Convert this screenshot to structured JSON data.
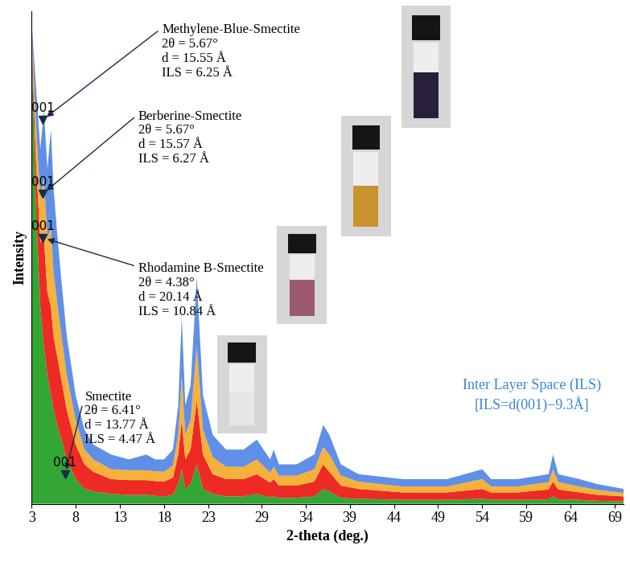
{
  "chart_data": {
    "type": "stacked_area",
    "x_label": "2-theta (deg.)",
    "y_label": "Intensity",
    "x": [
      3,
      3.5,
      4,
      4.4,
      4.8,
      5.2,
      5.5,
      5.9,
      6.4,
      7,
      8,
      9,
      10,
      12,
      14,
      16,
      17,
      18,
      19,
      19.6,
      20,
      20.4,
      21,
      21.7,
      22.4,
      23.5,
      25,
      27,
      28.5,
      30,
      30.4,
      31,
      33,
      35,
      36,
      36.7,
      38,
      40,
      45,
      50,
      54,
      55,
      58,
      61.5,
      62,
      62.6,
      65,
      67,
      70
    ],
    "series": [
      {
        "name": "Smectite",
        "color": "#33a633",
        "values": [
          95,
          60,
          40,
          32,
          26,
          22,
          19,
          16,
          13,
          9,
          5,
          3,
          2.5,
          2,
          1.8,
          1.8,
          1.6,
          1.5,
          1.8,
          4,
          7,
          3,
          4,
          8,
          3,
          2,
          1.5,
          1.5,
          2,
          1.3,
          1.5,
          1.2,
          1.2,
          1.5,
          3,
          2.5,
          1.2,
          1,
          0.8,
          0.8,
          1,
          0.8,
          0.8,
          0.9,
          1.5,
          0.9,
          0.8,
          0.6,
          0.5
        ]
      },
      {
        "name": "Rhodamine B-Smectite",
        "color": "#ee2a24",
        "values": [
          1,
          10,
          13,
          22,
          17,
          18,
          15,
          14,
          12,
          10,
          7,
          5,
          4,
          3,
          3,
          3,
          3,
          3,
          3.5,
          6,
          10,
          6,
          7,
          13,
          7,
          4,
          3.5,
          3.5,
          4,
          3,
          3.5,
          2.5,
          2.5,
          3,
          5,
          4,
          2.5,
          2,
          1.5,
          1.5,
          2,
          1.5,
          1.5,
          2,
          3,
          2,
          1.5,
          1.2,
          1
        ]
      },
      {
        "name": "Berberine-Smectite",
        "color": "#f5b13a",
        "values": [
          1,
          7,
          9,
          12,
          11,
          16,
          13,
          11,
          9,
          7,
          5,
          3,
          2.5,
          2,
          2,
          2,
          2,
          2,
          2.5,
          4,
          9,
          5,
          6,
          11,
          5,
          3.5,
          2.5,
          2.5,
          3,
          2,
          2.5,
          2,
          2,
          2.5,
          3.5,
          3.5,
          2,
          1.5,
          1.2,
          1.2,
          2,
          1.2,
          1.2,
          1.5,
          2.5,
          1.5,
          1.2,
          1,
          0.7
        ]
      },
      {
        "name": "Methylene-Blue-Smectite",
        "color": "#5f8fe6",
        "values": [
          1,
          8,
          10,
          14,
          14,
          20,
          17,
          14,
          11,
          8,
          5,
          4,
          3,
          3,
          2.2,
          3.2,
          2.4,
          2.5,
          3.2,
          6,
          12,
          6,
          7,
          14,
          7,
          4.5,
          3.5,
          3.5,
          4,
          2.7,
          3.5,
          2.3,
          2.3,
          3,
          4.5,
          4,
          2.3,
          1.5,
          1.5,
          1.5,
          2,
          1.5,
          1.5,
          1.6,
          3,
          1.6,
          1.5,
          1.2,
          0.8
        ]
      }
    ],
    "stacked": true,
    "xlim": [
      3,
      70
    ],
    "xticks": [
      3,
      8,
      13,
      18,
      23,
      29,
      34,
      39,
      44,
      49,
      54,
      59,
      64,
      69
    ],
    "ylim": [
      0,
      100
    ],
    "yticks": [],
    "tick_labels": "x",
    "annotations": [
      {
        "text": "Methylene-Blue-Smectite\n2θ = 5.67°\nd = 15.55 Å\nILS = 6.25 Å",
        "marker": "001",
        "x": 4.3,
        "y": 78
      },
      {
        "text": "Berberine-Smectite\n2θ = 5.67°\nd = 15.57 Å\nILS = 6.27 Å",
        "marker": "001",
        "x": 4.3,
        "y": 63
      },
      {
        "text": "Rhodamine B-Smectite\n2θ = 4.38°\nd = 20.14 Å\nILS = 10.84 Å",
        "marker": "001",
        "x": 4.3,
        "y": 54
      },
      {
        "text": "Smectite\n2θ = 6.41°\nd = 13.77 Å\nILS = 4.47 Å",
        "marker": "001",
        "x": 6.8,
        "y": 6
      }
    ],
    "note": {
      "text": "Inter Layer Space (ILS)\n[ILS=d(001)−9.3Å]",
      "color": "#3a86d8"
    }
  }
}
